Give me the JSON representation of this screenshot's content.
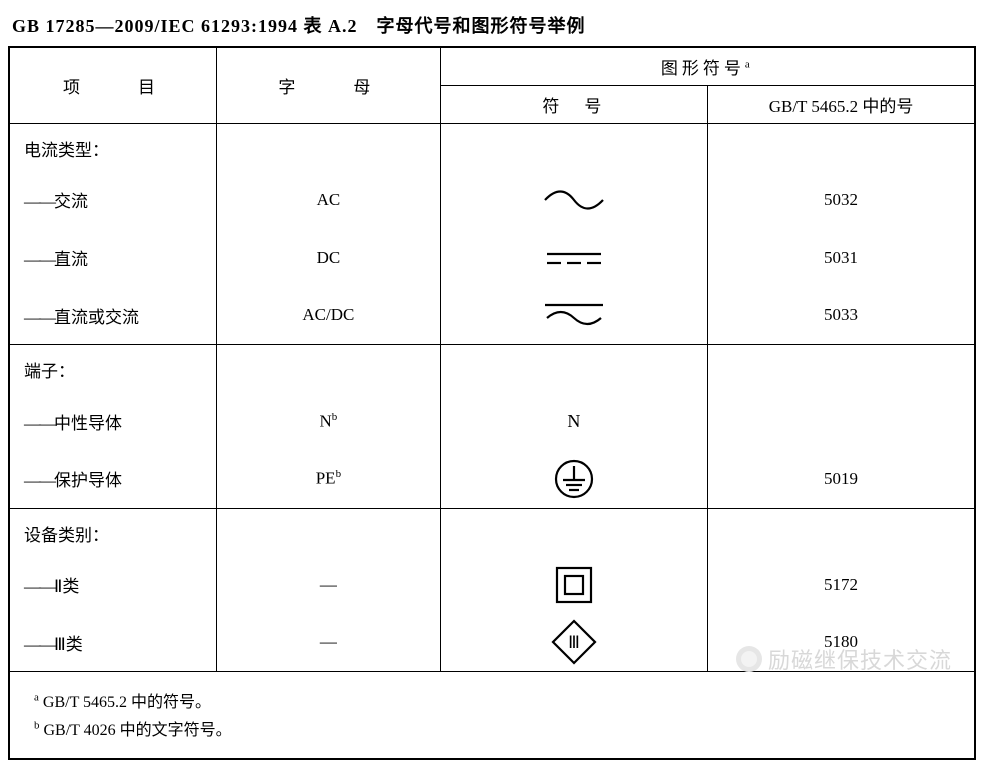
{
  "title": "GB 17285—2009/IEC 61293:1994 表 A.2　字母代号和图形符号举例",
  "headers": {
    "item": "项　　目",
    "letter": "字　　母",
    "graphic": "图形符号",
    "graphic_sup": "a",
    "symbol": "符　号",
    "ref": "GB/T 5465.2 中的号"
  },
  "groups": [
    {
      "section": "电流类型：",
      "rows": [
        {
          "label": "交流",
          "letter": "AC",
          "letter_sup": "",
          "symbol_key": "ac",
          "symbol_text": "",
          "ref": "5032"
        },
        {
          "label": "直流",
          "letter": "DC",
          "letter_sup": "",
          "symbol_key": "dc",
          "symbol_text": "",
          "ref": "5031"
        },
        {
          "label": "直流或交流",
          "letter": "AC/DC",
          "letter_sup": "",
          "symbol_key": "acdc",
          "symbol_text": "",
          "ref": "5033"
        }
      ]
    },
    {
      "section": "端子：",
      "rows": [
        {
          "label": "中性导体",
          "letter": "N",
          "letter_sup": "b",
          "symbol_key": "text",
          "symbol_text": "N",
          "ref": ""
        },
        {
          "label": "保护导体",
          "letter": "PE",
          "letter_sup": "b",
          "symbol_key": "pe",
          "symbol_text": "",
          "ref": "5019"
        }
      ]
    },
    {
      "section": "设备类别：",
      "rows": [
        {
          "label": "Ⅱ类",
          "letter": "—",
          "letter_sup": "",
          "symbol_key": "class2",
          "symbol_text": "",
          "ref": "5172"
        },
        {
          "label": "Ⅲ类",
          "letter": "—",
          "letter_sup": "",
          "symbol_key": "class3",
          "symbol_text": "Ⅲ",
          "ref": "5180"
        }
      ]
    }
  ],
  "footnotes": [
    {
      "sup": "a",
      "text": " GB/T 5465.2 中的符号。"
    },
    {
      "sup": "b",
      "text": " GB/T 4026 中的文字符号。"
    }
  ],
  "watermark": "励磁继保技术交流",
  "style": {
    "stroke": "#000000",
    "stroke_width": 2.2
  }
}
